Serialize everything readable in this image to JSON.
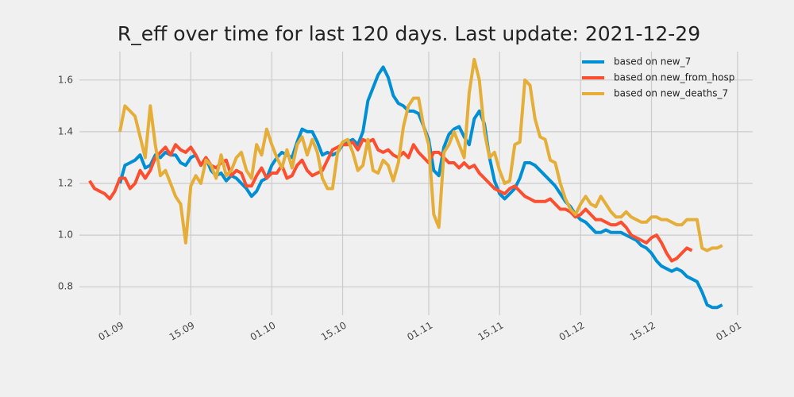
{
  "chart_data": {
    "type": "line",
    "title": "R_eff over time for last 120 days. Last update: 2021-12-29",
    "x": [
      "26.08",
      "27.08",
      "28.08",
      "29.08",
      "30.08",
      "31.08",
      "01.09",
      "02.09",
      "03.09",
      "04.09",
      "05.09",
      "06.09",
      "07.09",
      "08.09",
      "09.09",
      "10.09",
      "11.09",
      "12.09",
      "13.09",
      "14.09",
      "15.09",
      "16.09",
      "17.09",
      "18.09",
      "19.09",
      "20.09",
      "21.09",
      "22.09",
      "23.09",
      "24.09",
      "25.09",
      "26.09",
      "27.09",
      "28.09",
      "29.09",
      "30.09",
      "01.10",
      "02.10",
      "03.10",
      "04.10",
      "05.10",
      "06.10",
      "07.10",
      "08.10",
      "09.10",
      "10.10",
      "11.10",
      "12.10",
      "13.10",
      "14.10",
      "15.10",
      "16.10",
      "17.10",
      "18.10",
      "19.10",
      "20.10",
      "21.10",
      "22.10",
      "23.10",
      "24.10",
      "25.10",
      "26.10",
      "27.10",
      "28.10",
      "29.10",
      "30.10",
      "31.10",
      "01.11",
      "02.11",
      "03.11",
      "04.11",
      "05.11",
      "06.11",
      "07.11",
      "08.11",
      "09.11",
      "10.11",
      "11.11",
      "12.11",
      "13.11",
      "14.11",
      "15.11",
      "16.11",
      "17.11",
      "18.11",
      "19.11",
      "20.11",
      "21.11",
      "22.11",
      "23.11",
      "24.11",
      "25.11",
      "26.11",
      "27.11",
      "28.11",
      "29.11",
      "30.11",
      "01.12",
      "02.12",
      "03.12",
      "04.12",
      "05.12",
      "06.12",
      "07.12",
      "08.12",
      "09.12",
      "10.12",
      "11.12",
      "12.12",
      "13.12",
      "14.12",
      "15.12",
      "16.12",
      "17.12",
      "18.12",
      "19.12",
      "20.12",
      "21.12",
      "22.12",
      "23.12",
      "24.12",
      "25.12",
      "26.12",
      "27.12",
      "28.12",
      "29.12"
    ],
    "series": [
      {
        "name": "based on new_7",
        "color": "#008fd5",
        "values": [
          null,
          null,
          null,
          null,
          null,
          null,
          1.2,
          1.27,
          1.28,
          1.29,
          1.31,
          1.26,
          1.27,
          1.31,
          1.3,
          1.32,
          1.31,
          1.31,
          1.28,
          1.27,
          1.3,
          1.31,
          1.27,
          1.3,
          1.25,
          1.23,
          1.24,
          1.21,
          1.23,
          1.22,
          1.2,
          1.18,
          1.15,
          1.17,
          1.21,
          1.22,
          1.27,
          1.3,
          1.32,
          1.31,
          1.3,
          1.36,
          1.41,
          1.4,
          1.4,
          1.36,
          1.31,
          1.32,
          1.31,
          1.32,
          1.35,
          1.36,
          1.37,
          1.35,
          1.4,
          1.52,
          1.57,
          1.62,
          1.65,
          1.61,
          1.54,
          1.51,
          1.5,
          1.48,
          1.48,
          1.47,
          1.42,
          1.37,
          1.25,
          1.23,
          1.34,
          1.39,
          1.41,
          1.42,
          1.38,
          1.35,
          1.45,
          1.48,
          1.43,
          1.3,
          1.21,
          1.16,
          1.14,
          1.16,
          1.18,
          1.22,
          1.28,
          1.28,
          1.27,
          1.25,
          1.23,
          1.21,
          1.19,
          1.16,
          1.13,
          1.11,
          1.08,
          1.06,
          1.05,
          1.03,
          1.01,
          1.01,
          1.02,
          1.01,
          1.01,
          1.01,
          1.0,
          0.99,
          0.98,
          0.96,
          0.95,
          0.93,
          0.9,
          0.88,
          0.87,
          0.86,
          0.87,
          0.86,
          0.84,
          0.83,
          0.82,
          0.78,
          0.73,
          0.72,
          0.72,
          0.73
        ]
      },
      {
        "name": "based on new_from_hosp",
        "color": "#fc4f30",
        "values": [
          1.21,
          1.18,
          1.17,
          1.16,
          1.14,
          1.17,
          1.22,
          1.22,
          1.18,
          1.2,
          1.25,
          1.22,
          1.25,
          1.3,
          1.32,
          1.34,
          1.31,
          1.35,
          1.33,
          1.32,
          1.34,
          1.31,
          1.27,
          1.3,
          1.27,
          1.26,
          1.28,
          1.29,
          1.23,
          1.25,
          1.24,
          1.19,
          1.19,
          1.23,
          1.26,
          1.22,
          1.24,
          1.24,
          1.27,
          1.22,
          1.23,
          1.27,
          1.29,
          1.25,
          1.23,
          1.24,
          1.25,
          1.29,
          1.33,
          1.34,
          1.35,
          1.35,
          1.36,
          1.33,
          1.37,
          1.36,
          1.37,
          1.33,
          1.32,
          1.33,
          1.31,
          1.3,
          1.32,
          1.3,
          1.35,
          1.32,
          1.3,
          1.28,
          1.32,
          1.32,
          1.3,
          1.28,
          1.28,
          1.26,
          1.28,
          1.26,
          1.27,
          1.24,
          1.22,
          1.2,
          1.18,
          1.17,
          1.16,
          1.18,
          1.19,
          1.17,
          1.15,
          1.14,
          1.13,
          1.13,
          1.13,
          1.14,
          1.12,
          1.1,
          1.1,
          1.09,
          1.07,
          1.08,
          1.1,
          1.08,
          1.06,
          1.06,
          1.05,
          1.04,
          1.04,
          1.05,
          1.03,
          1.0,
          0.99,
          0.98,
          0.97,
          0.99,
          1.0,
          0.97,
          0.93,
          0.9,
          0.91,
          0.93,
          0.95,
          0.94,
          null,
          null,
          null,
          null,
          null,
          null
        ]
      },
      {
        "name": "based on new_deaths_7",
        "color": "#e5ae38",
        "values": [
          null,
          null,
          null,
          null,
          null,
          null,
          1.4,
          1.5,
          1.48,
          1.46,
          1.38,
          1.3,
          1.5,
          1.35,
          1.23,
          1.25,
          1.2,
          1.15,
          1.12,
          0.97,
          1.19,
          1.23,
          1.2,
          1.29,
          1.27,
          1.22,
          1.31,
          1.23,
          1.25,
          1.3,
          1.32,
          1.25,
          1.22,
          1.35,
          1.31,
          1.41,
          1.35,
          1.3,
          1.26,
          1.33,
          1.26,
          1.35,
          1.38,
          1.31,
          1.37,
          1.32,
          1.22,
          1.18,
          1.18,
          1.32,
          1.36,
          1.37,
          1.32,
          1.25,
          1.27,
          1.37,
          1.25,
          1.24,
          1.29,
          1.27,
          1.21,
          1.28,
          1.42,
          1.5,
          1.53,
          1.53,
          1.42,
          1.35,
          1.08,
          1.03,
          1.32,
          1.35,
          1.4,
          1.35,
          1.3,
          1.55,
          1.68,
          1.6,
          1.4,
          1.3,
          1.32,
          1.25,
          1.2,
          1.21,
          1.35,
          1.36,
          1.6,
          1.58,
          1.45,
          1.38,
          1.37,
          1.29,
          1.28,
          1.2,
          1.14,
          1.1,
          1.08,
          1.12,
          1.15,
          1.12,
          1.11,
          1.15,
          1.12,
          1.09,
          1.07,
          1.07,
          1.09,
          1.07,
          1.06,
          1.05,
          1.05,
          1.07,
          1.07,
          1.06,
          1.06,
          1.05,
          1.04,
          1.04,
          1.06,
          1.06,
          1.06,
          0.95,
          0.94,
          0.95,
          0.95,
          0.96
        ]
      }
    ],
    "xlim": [
      "24.08",
      "04.01"
    ],
    "xticks": [
      "01.09",
      "15.09",
      "01.10",
      "15.10",
      "01.11",
      "15.11",
      "01.12",
      "15.12",
      "01.01"
    ],
    "ylim": [
      0.69,
      1.71
    ],
    "yticks": [
      0.8,
      {
        "value": 1.0,
        "label": "1.0"
      },
      1.2,
      1.4,
      1.6
    ],
    "grid": true,
    "legend": "upper right"
  }
}
